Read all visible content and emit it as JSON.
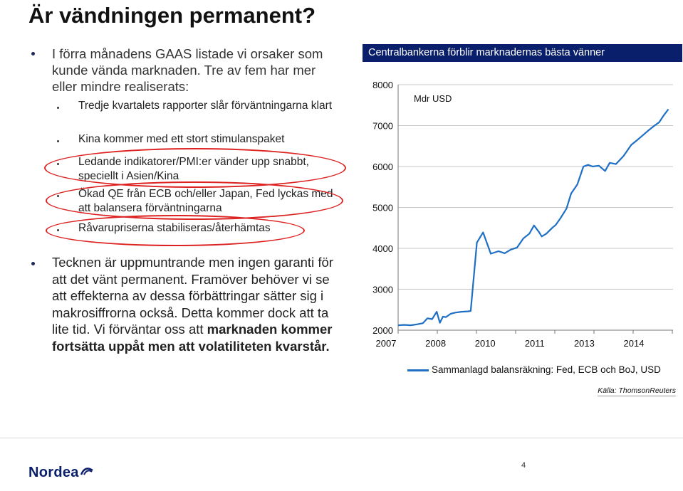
{
  "slide": {
    "title": "Är vändningen permanent?",
    "bullet1_line1": "I förra månadens GAAS listade vi orsaker som",
    "bullet1_line2": "kunde vända marknaden. Tre av fem har mer",
    "bullet1_line3": "eller mindre realiserats:",
    "subbullets": [
      "Tredje kvartalets rapporter slår förväntningarna klart",
      "Kina kommer med ett stort stimulanspaket",
      "Ledande indikatorer/PMI:er vänder upp snabbt, speciellt i Asien/Kina",
      "Ökad QE från ECB och/eller Japan, Fed lyckas med att balansera förväntningarna",
      "Råvarupriserna stabiliseras/återhämtas"
    ],
    "bullet2_plain": "Tecknen är uppmuntrande men ingen garanti för att det vänt permanent. Framöver behöver vi se att effekterna av dessa förbättringar sätter sig i makrosiffrorna också. Detta kommer dock att ta lite tid. Vi förväntar oss att ",
    "bullet2_bold": "marknaden kommer fortsätta uppåt men att volatiliteten kvarstår.",
    "page_number": "4",
    "logo_text": "Nordea"
  },
  "colors": {
    "title_bar": "#0a1f6b",
    "series_line": "#1f6fc4",
    "highlight_oval": "#dd2222",
    "bullet": "#1e2a5a"
  },
  "chart_data": {
    "type": "line",
    "title": "Centralbankerna förblir marknadernas bästa vänner",
    "unit_label": "Mdr USD",
    "source": "Källa: ThomsonReuters",
    "ylim": [
      2000,
      8000
    ],
    "yticks": [
      "2000",
      "3000",
      "4000",
      "5000",
      "6000",
      "7000",
      "8000"
    ],
    "xtick_labels": [
      "2007",
      "2008",
      "2010",
      "2011",
      "2013",
      "2014"
    ],
    "xlim": [
      2007,
      2015.9
    ],
    "grid": "horizontal",
    "legend_position": "bottom",
    "series": [
      {
        "name": "Sammanlagd balansräkning: Fed, ECB och BoJ, USD",
        "x": [
          2007.0,
          2007.2,
          2007.4,
          2007.6,
          2007.8,
          2007.95,
          2008.1,
          2008.25,
          2008.35,
          2008.45,
          2008.55,
          2008.7,
          2008.85,
          2009.05,
          2009.25,
          2009.35,
          2009.55,
          2009.75,
          2010.0,
          2010.25,
          2010.45,
          2010.65,
          2010.85,
          2011.05,
          2011.25,
          2011.4,
          2011.55,
          2011.65,
          2011.8,
          2012.0,
          2012.1,
          2012.25,
          2012.45,
          2012.6,
          2012.8,
          2013.0,
          2013.15,
          2013.3,
          2013.5,
          2013.7,
          2013.85,
          2014.05,
          2014.3,
          2014.55,
          2014.7,
          2014.9,
          2015.1,
          2015.3,
          2015.45,
          2015.6,
          2015.75
        ],
        "values": [
          2120,
          2130,
          2120,
          2140,
          2170,
          2290,
          2270,
          2450,
          2180,
          2330,
          2320,
          2400,
          2430,
          2450,
          2460,
          2470,
          4140,
          4390,
          3870,
          3930,
          3880,
          3970,
          4020,
          4240,
          4360,
          4560,
          4410,
          4290,
          4360,
          4510,
          4570,
          4730,
          4970,
          5340,
          5560,
          6000,
          6040,
          6000,
          6020,
          5890,
          6090,
          6060,
          6260,
          6530,
          6620,
          6750,
          6880,
          7000,
          7080,
          7250,
          7400
        ]
      }
    ]
  }
}
